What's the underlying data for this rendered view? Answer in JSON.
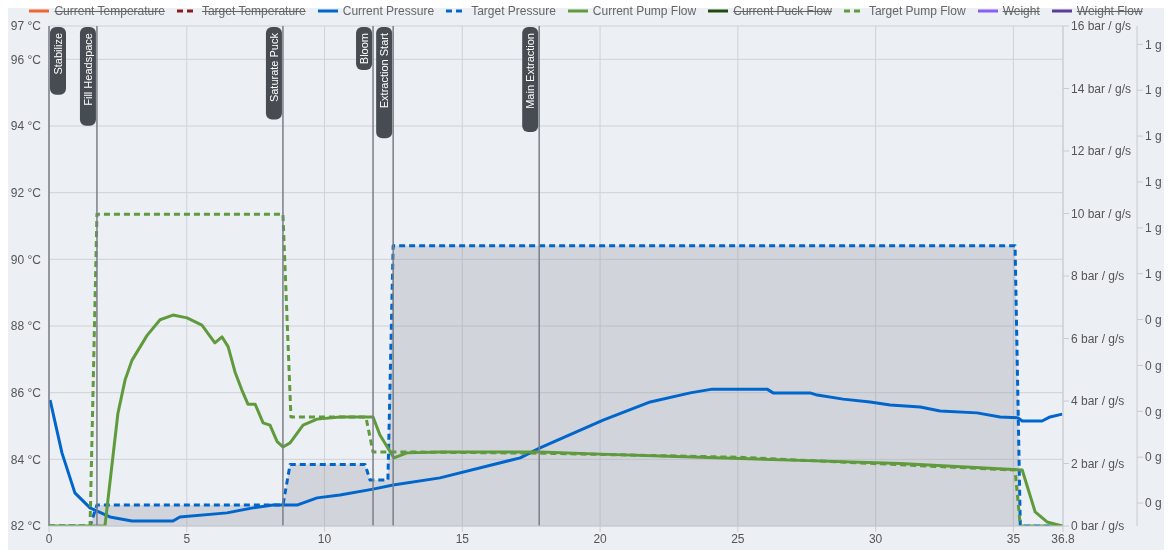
{
  "chart_data": {
    "type": "line",
    "legend": "top",
    "grid": true,
    "xlim": [
      0,
      36.8
    ],
    "xticks": [
      0,
      5,
      10,
      15,
      20,
      25,
      30,
      35,
      36.8
    ],
    "ylim": [
      82,
      97
    ],
    "yticks": [
      {
        "value": 82,
        "label": "82 °C"
      },
      {
        "value": 84,
        "label": "84 °C"
      },
      {
        "value": 86,
        "label": "86 °C"
      },
      {
        "value": 88,
        "label": "88 °C"
      },
      {
        "value": 90,
        "label": "90 °C"
      },
      {
        "value": 92,
        "label": "92 °C"
      },
      {
        "value": 94,
        "label": "94 °C"
      },
      {
        "value": 96,
        "label": "96 °C"
      },
      {
        "value": 97,
        "label": "97 °C"
      }
    ],
    "y2lim": [
      0,
      16
    ],
    "y2ticks": [
      {
        "value": 0,
        "label": "0 bar / g/s"
      },
      {
        "value": 2,
        "label": "2 bar / g/s"
      },
      {
        "value": 4,
        "label": "4 bar / g/s"
      },
      {
        "value": 6,
        "label": "6 bar / g/s"
      },
      {
        "value": 8,
        "label": "8 bar / g/s"
      },
      {
        "value": 10,
        "label": "10 bar / g/s"
      },
      {
        "value": 12,
        "label": "12 bar / g/s"
      },
      {
        "value": 14,
        "label": "14 bar / g/s"
      },
      {
        "value": 16,
        "label": "16 bar / g/s"
      }
    ],
    "y3lim": [
      -0.05,
      1.04
    ],
    "y3ticks": [
      {
        "value": 0,
        "label": "0 g"
      },
      {
        "value": 0.1,
        "label": "0 g"
      },
      {
        "value": 0.2,
        "label": "0 g"
      },
      {
        "value": 0.3,
        "label": "0 g"
      },
      {
        "value": 0.4,
        "label": "0 g"
      },
      {
        "value": 0.5,
        "label": "1 g"
      },
      {
        "value": 0.6,
        "label": "1 g"
      },
      {
        "value": 0.7,
        "label": "1 g"
      },
      {
        "value": 0.8,
        "label": "1 g"
      },
      {
        "value": 0.9,
        "label": "1 g"
      },
      {
        "value": 1.0,
        "label": "1 g"
      }
    ],
    "ref_lines": [
      {
        "axis": "x",
        "value": 0,
        "label": "Stabilize",
        "color": "#7a7f88"
      },
      {
        "axis": "x",
        "value": 1.74,
        "label": "Fill Headspace",
        "color": "#7a7f88"
      },
      {
        "axis": "x",
        "value": 8.49,
        "label": "Saturate Puck",
        "color": "#7a7f88"
      },
      {
        "axis": "x",
        "value": 11.76,
        "label": "Bloom",
        "color": "#7a7f88"
      },
      {
        "axis": "x",
        "value": 12.49,
        "label": "Extraction Start",
        "color": "#7a7f88"
      },
      {
        "axis": "x",
        "value": 17.79,
        "label": "Main Extraction",
        "color": "#7a7f88"
      }
    ],
    "series": [
      {
        "name": "Current Temperature",
        "color": "#f26430",
        "line_style": "solid"
      },
      {
        "name": "Target Temperature",
        "color": "#8b1c1c",
        "line_style": "dashed"
      },
      {
        "name": "Current Pressure",
        "color": "#0066cc",
        "line_style": "solid",
        "axis": "y2",
        "x": [
          0.04,
          0.47,
          0.94,
          1.49,
          2.21,
          3.01,
          4.5,
          4.75,
          6.46,
          7.4,
          8.13,
          9.0,
          9.73,
          10.56,
          11.76,
          12.49,
          14.19,
          17.1,
          17.82,
          20.11,
          21.82,
          23.27,
          24.07,
          26.06,
          26.28,
          27.62,
          27.88,
          28.82,
          29.8,
          30.53,
          31.62,
          32.34,
          33.68,
          34.52,
          35.17,
          35.32,
          36.04,
          36.33,
          36.77
        ],
        "values": [
          4.03,
          2.34,
          1.06,
          0.58,
          0.29,
          0.16,
          0.16,
          0.29,
          0.42,
          0.58,
          0.67,
          0.67,
          0.9,
          0.99,
          1.18,
          1.31,
          1.54,
          2.18,
          2.5,
          3.39,
          3.97,
          4.26,
          4.38,
          4.38,
          4.26,
          4.26,
          4.19,
          4.06,
          3.97,
          3.87,
          3.81,
          3.68,
          3.62,
          3.49,
          3.46,
          3.36,
          3.36,
          3.49,
          3.58
        ]
      },
      {
        "name": "Target Pressure",
        "type": "area",
        "color": "#0066cc",
        "line_style": "dashed",
        "axis": "y2",
        "x": [
          0,
          1.49,
          1.74,
          8.49,
          8.75,
          11.47,
          11.65,
          12.3,
          12.49,
          35.06,
          35.25,
          36.8
        ],
        "values": [
          0,
          0,
          0.67,
          0.67,
          1.97,
          1.97,
          1.47,
          1.47,
          8.97,
          8.97,
          0,
          0
        ]
      },
      {
        "name": "Current Pump Flow",
        "color": "#5f9b3c",
        "line_style": "solid",
        "axis": "y2",
        "x": [
          0,
          2.03,
          2.5,
          2.76,
          3.01,
          3.56,
          4.03,
          4.5,
          5.01,
          5.55,
          6.02,
          6.28,
          6.5,
          6.75,
          7.0,
          7.22,
          7.48,
          7.77,
          8.02,
          8.28,
          8.49,
          8.75,
          9.22,
          9.73,
          10.56,
          11.76,
          12.01,
          12.52,
          12.99,
          14.19,
          17.82,
          20.0,
          23.63,
          27.26,
          30.89,
          35.32,
          35.79,
          36.22,
          36.77
        ],
        "values": [
          0,
          0,
          3.6,
          4.67,
          5.3,
          6.1,
          6.6,
          6.75,
          6.66,
          6.43,
          5.86,
          6.05,
          5.74,
          4.93,
          4.35,
          3.9,
          3.9,
          3.3,
          3.23,
          2.7,
          2.53,
          2.66,
          3.23,
          3.42,
          3.49,
          3.49,
          2.91,
          2.18,
          2.34,
          2.37,
          2.37,
          2.3,
          2.2,
          2.1,
          2.0,
          1.79,
          0.45,
          0.13,
          0
        ]
      },
      {
        "name": "Current Puck Flow",
        "color": "#1f4a10",
        "line_style": "solid"
      },
      {
        "name": "Target Pump Flow",
        "color": "#5f9b3c",
        "line_style": "dashed",
        "axis": "y2",
        "x": [
          0,
          1.49,
          1.74,
          8.49,
          8.78,
          11.5,
          11.76,
          12.8,
          17.8,
          25.0,
          35.06,
          35.25,
          36.8
        ],
        "values": [
          0,
          0,
          9.98,
          9.98,
          3.49,
          3.49,
          2.37,
          2.37,
          2.33,
          2.2,
          1.79,
          0,
          0
        ]
      },
      {
        "name": "Weight",
        "color": "#8b5cf6",
        "line_style": "solid"
      },
      {
        "name": "Weight Flow",
        "color": "#5b3c9a",
        "line_style": "solid"
      }
    ]
  }
}
